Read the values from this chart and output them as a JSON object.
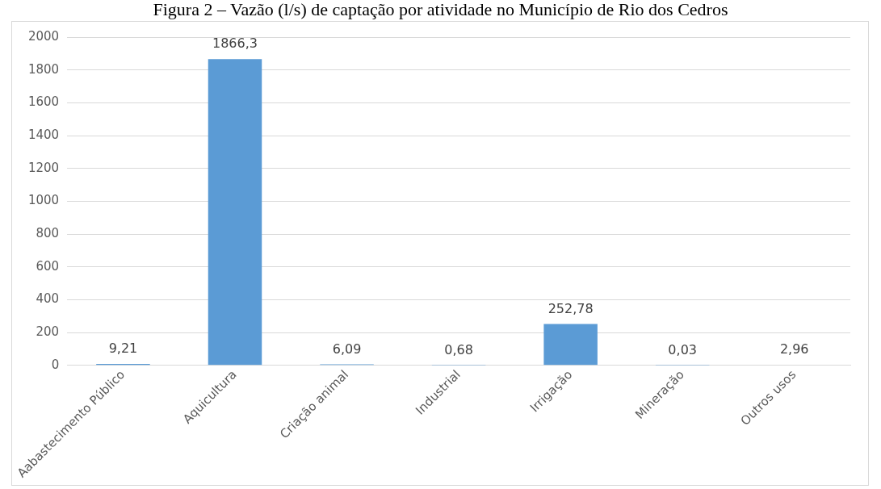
{
  "chart_data": {
    "type": "bar",
    "title": "Figura 2 – Vazão (l/s) de captação por atividade no Município de Rio dos Cedros",
    "categories": [
      "Aabastecimento Público",
      "Aquicultura",
      "Criação animal",
      "Industrial",
      "Irrigação",
      "Mineração",
      "Outros usos"
    ],
    "values": [
      9.21,
      1866.3,
      6.09,
      0.68,
      252.78,
      0.03,
      2.96
    ],
    "value_labels": [
      "9,21",
      "1866,3",
      "6,09",
      "0,68",
      "252,78",
      "0,03",
      "2,96"
    ],
    "color": "#5b9bd5",
    "ylim": [
      0,
      2000
    ],
    "yticks": [
      0,
      200,
      400,
      600,
      800,
      1000,
      1200,
      1400,
      1600,
      1800,
      2000
    ],
    "grid": "y",
    "legend": false
  }
}
